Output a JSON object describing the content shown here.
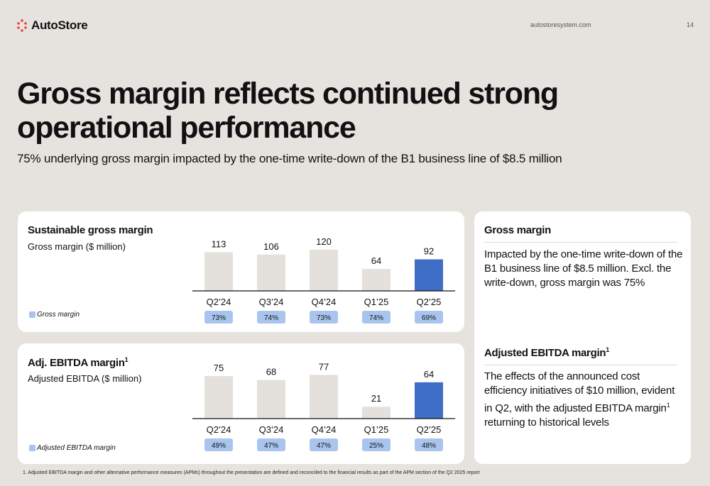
{
  "header": {
    "logo_text": "AutoStore",
    "url": "autostoresystem.com",
    "page_number": "14"
  },
  "title": "Gross margin reflects continued strong operational performance",
  "subtitle": "75% underlying gross margin impacted by the one-time write-down of the B1 business line of $8.5 million",
  "colors": {
    "background": "#e6e3df",
    "bar_neutral": "#e4e1dd",
    "bar_highlight": "#3f6ec6",
    "badge": "#a9c5ee",
    "logo_red": "#e8423a"
  },
  "cards": [
    {
      "title": "Sustainable gross margin",
      "title_sup": "",
      "subtitle": "Gross margin ($ million)",
      "legend": "Gross margin"
    },
    {
      "title": "Adj. EBITDA margin",
      "title_sup": "1",
      "subtitle": "Adjusted EBITDA ($ million)",
      "legend": "Adjusted EBITDA margin"
    }
  ],
  "chart_data": [
    {
      "type": "bar",
      "title": "Sustainable gross margin",
      "ylabel": "Gross margin ($ million)",
      "categories": [
        "Q2’24",
        "Q3’24",
        "Q4’24",
        "Q1’25",
        "Q2’25"
      ],
      "values": [
        113,
        106,
        120,
        64,
        92
      ],
      "highlight_index": 4,
      "margins": [
        "73%",
        "74%",
        "73%",
        "74%",
        "69%"
      ],
      "legend": "Gross margin",
      "legend_position": "bottom-left",
      "grid": false
    },
    {
      "type": "bar",
      "title": "Adj. EBITDA margin",
      "ylabel": "Adjusted EBITDA ($ million)",
      "categories": [
        "Q2’24",
        "Q3’24",
        "Q4’24",
        "Q1’25",
        "Q2’25"
      ],
      "values": [
        75,
        68,
        77,
        21,
        64
      ],
      "highlight_index": 4,
      "margins": [
        "49%",
        "47%",
        "47%",
        "25%",
        "48%"
      ],
      "legend": "Adjusted EBITDA margin",
      "legend_position": "bottom-left",
      "grid": false
    }
  ],
  "side": {
    "gross_title": "Gross margin",
    "gross_text": "Impacted by the one-time write-down of the B1 business line of $8.5 million. Excl. the write-down, gross margin was 75%",
    "ebitda_title": "Adjusted EBITDA margin",
    "ebitda_sup": "1",
    "ebitda_text_a": "The effects of the announced cost efficiency initiatives of $10 million, evident in Q2, with the adjusted EBITDA margin",
    "ebitda_text_sup": "1",
    "ebitda_text_b": " returning to historical levels"
  },
  "footnote": "1. Adjusted EBITDA margin and other alternative performance measures (APMs) throughout the presentation are defined and reconciled to the financial results as part of the APM section of the Q2 2025 report"
}
